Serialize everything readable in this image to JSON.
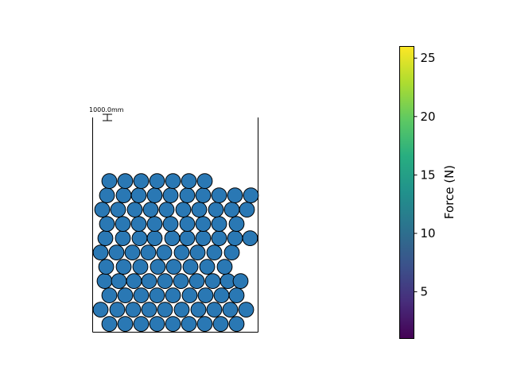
{
  "chart_data": {
    "type": "scatter",
    "description_free": true,
    "scale_bar_label": "1000.0mm",
    "particle_color": "#2a78b4",
    "colorbar": {
      "label": "Force (N)",
      "range": [
        1,
        26
      ],
      "ticks": [
        5,
        10,
        15,
        20,
        25
      ],
      "colormap": "viridis"
    },
    "rows": [
      [
        1.05,
        2.05,
        3.05,
        4.05,
        5.05,
        6.05,
        7.05,
        8.05,
        9.05
      ],
      [
        0.5,
        1.55,
        2.55,
        3.55,
        4.55,
        5.6,
        6.65,
        7.65,
        8.65,
        9.65
      ],
      [
        1.05,
        2.05,
        3.05,
        4.05,
        5.05,
        6.1,
        7.1,
        8.1,
        9.05
      ],
      [
        0.75,
        1.65,
        2.6,
        3.55,
        4.55,
        5.55,
        6.55,
        7.55,
        8.5,
        9.3
      ],
      [
        0.85,
        1.95,
        3.0,
        4.1,
        5.1,
        6.15,
        7.2,
        8.3
      ],
      [
        0.5,
        1.5,
        2.5,
        3.5,
        4.5,
        5.6,
        6.6,
        7.65,
        8.75
      ],
      [
        0.8,
        1.9,
        2.95,
        3.9,
        5.0,
        5.95,
        6.95,
        7.95,
        8.95,
        9.9
      ],
      [
        0.9,
        1.9,
        2.9,
        3.9,
        4.9,
        5.95,
        6.95,
        7.95,
        9.05
      ],
      [
        0.6,
        1.6,
        2.65,
        3.65,
        4.65,
        5.7,
        6.7,
        7.75,
        8.75,
        9.7
      ],
      [
        0.9,
        1.95,
        2.9,
        3.9,
        4.9,
        5.95,
        6.95,
        7.95,
        8.95,
        9.95
      ],
      [
        1.05,
        2.05,
        3.05,
        4.05,
        5.05,
        6.05,
        7.05
      ]
    ]
  }
}
